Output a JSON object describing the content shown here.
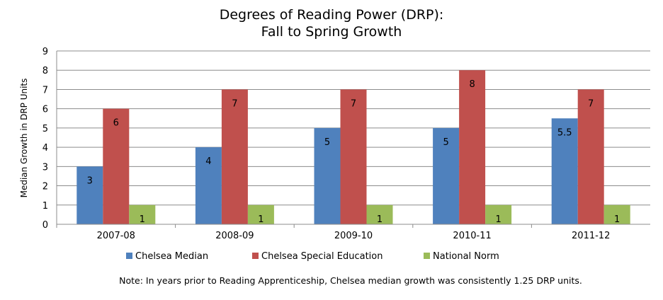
{
  "chart_data": {
    "type": "bar",
    "title": [
      "Degrees of Reading Power (DRP):",
      "Fall to Spring Growth"
    ],
    "xlabel": "",
    "ylabel": "Median Growth in DRP Units",
    "ylim": [
      0,
      9
    ],
    "yticks": [
      0,
      1,
      2,
      3,
      4,
      5,
      6,
      7,
      8,
      9
    ],
    "grid": true,
    "legend_position": "bottom",
    "categories": [
      "2007-08",
      "2008-09",
      "2009-10",
      "2010-11",
      "2011-12"
    ],
    "series": [
      {
        "name": "Chelsea Median",
        "color": "#4f81bd",
        "values": [
          3,
          4,
          5,
          5,
          5.5
        ],
        "labels": [
          "3",
          "4",
          "5",
          "5",
          "5.5"
        ]
      },
      {
        "name": "Chelsea Special Education",
        "color": "#c0504d",
        "values": [
          6,
          7,
          7,
          8,
          7
        ],
        "labels": [
          "6",
          "7",
          "7",
          "8",
          "7"
        ]
      },
      {
        "name": "National Norm",
        "color": "#9bbb59",
        "values": [
          1,
          1,
          1,
          1,
          1
        ],
        "labels": [
          "1",
          "1",
          "1",
          "1",
          "1"
        ]
      }
    ],
    "note": "Note: In years prior to Reading Apprenticeship, Chelsea median growth was consistently 1.25 DRP units."
  }
}
